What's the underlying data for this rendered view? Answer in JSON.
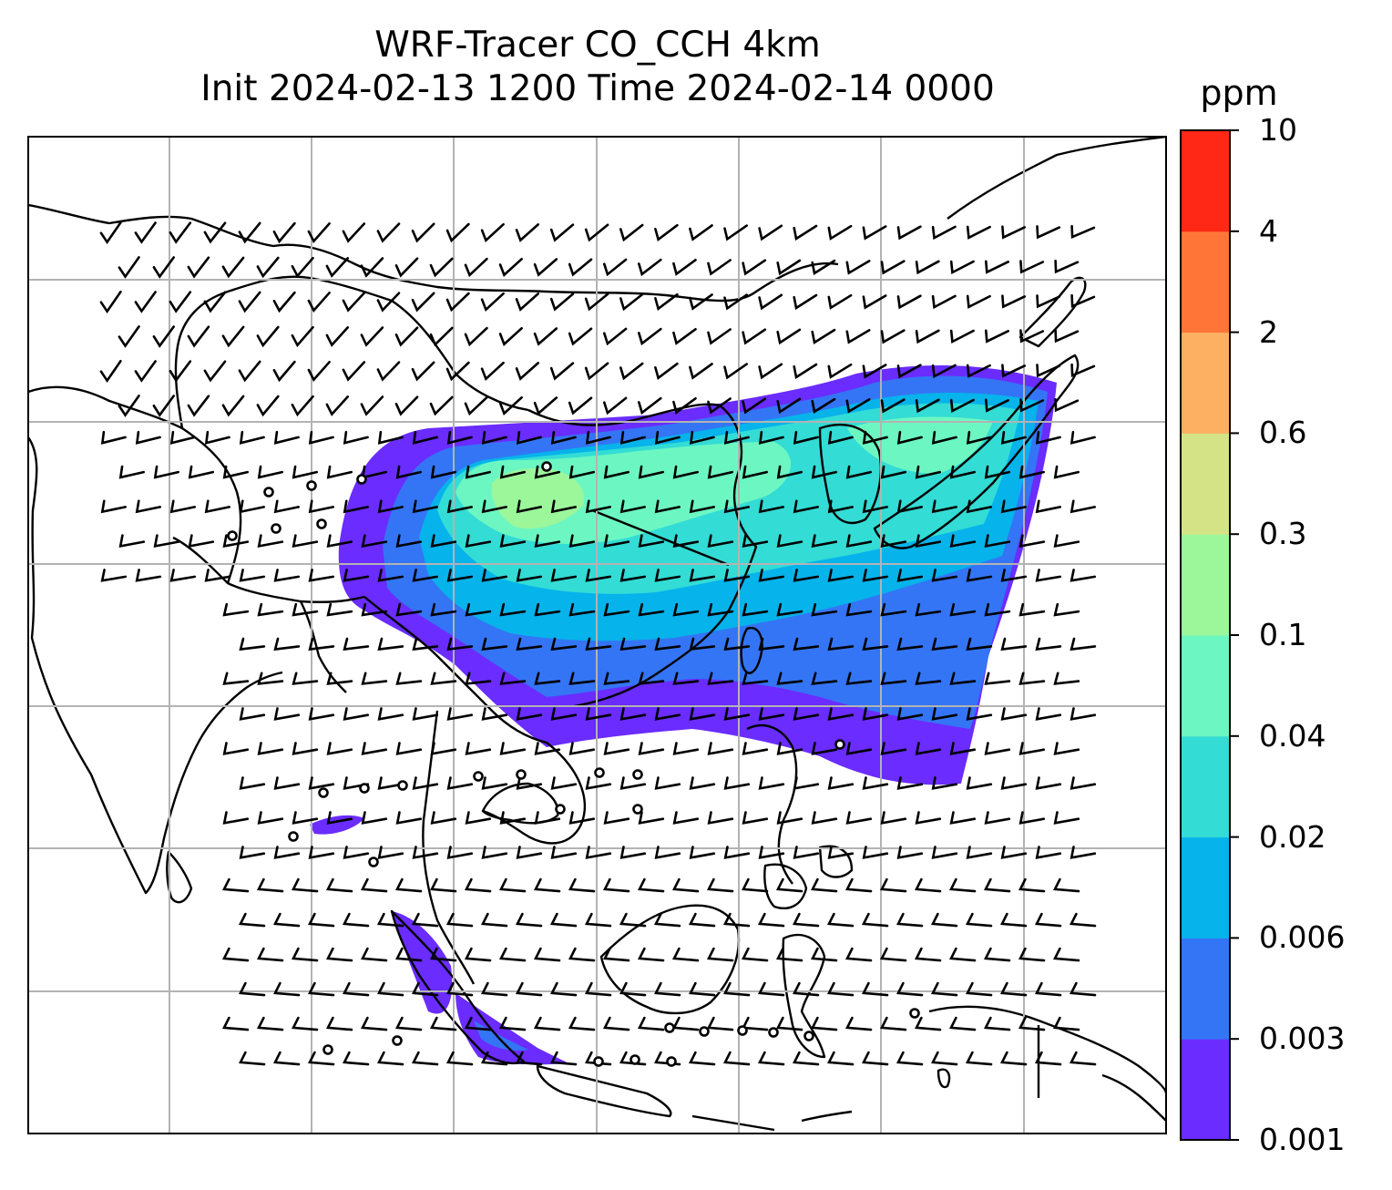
{
  "title": {
    "line1": "WRF-Tracer CO_CCH 4km",
    "line2": "Init 2024-02-13 1200 Time 2024-02-14 0000"
  },
  "colorbar": {
    "unit": "ppm",
    "levels": [
      "0.001",
      "0.003",
      "0.006",
      "0.02",
      "0.04",
      "0.1",
      "0.3",
      "0.6",
      "2",
      "4",
      "10"
    ],
    "colors": [
      "#6a2cff",
      "#3475f5",
      "#06b3ea",
      "#33dcd5",
      "#6cf7c2",
      "#9cf79a",
      "#d3e385",
      "#fdb062",
      "#ff7538",
      "#ff2816"
    ]
  },
  "map": {
    "variable": "CO_CCH tracer concentration",
    "overlays": [
      "coastlines",
      "country-borders",
      "lat-lon-gridlines",
      "wind-barbs"
    ],
    "gridlines": true
  }
}
